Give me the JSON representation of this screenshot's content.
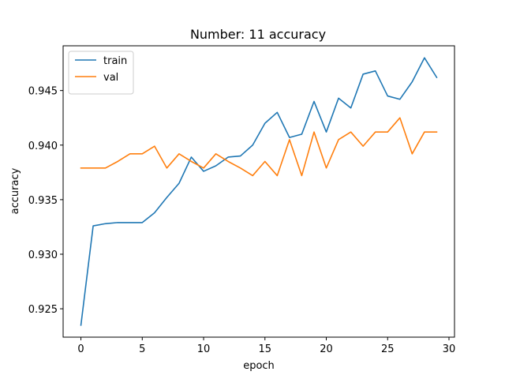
{
  "chart_data": {
    "type": "line",
    "title": "Number: 11 accuracy",
    "xlabel": "epoch",
    "ylabel": "accuracy",
    "xlim": [
      -1.45,
      30.45
    ],
    "ylim": [
      0.9224,
      0.9491
    ],
    "xticks": [
      0,
      5,
      10,
      15,
      20,
      25,
      30
    ],
    "yticks": [
      0.925,
      0.93,
      0.935,
      0.94,
      0.945
    ],
    "ytick_labels": [
      "0.925",
      "0.930",
      "0.935",
      "0.940",
      "0.945"
    ],
    "grid": false,
    "legend_position": "upper-left",
    "x": [
      0,
      1,
      2,
      3,
      4,
      5,
      6,
      7,
      8,
      9,
      10,
      11,
      12,
      13,
      14,
      15,
      16,
      17,
      18,
      19,
      20,
      21,
      22,
      23,
      24,
      25,
      26,
      27,
      28,
      29
    ],
    "series": [
      {
        "name": "train",
        "color": "#1f77b4",
        "values": [
          0.9235,
          0.9326,
          0.9328,
          0.9329,
          0.9329,
          0.9329,
          0.9338,
          0.9352,
          0.9365,
          0.9389,
          0.9376,
          0.9381,
          0.9389,
          0.939,
          0.94,
          0.942,
          0.943,
          0.9407,
          0.941,
          0.944,
          0.9412,
          0.9443,
          0.9434,
          0.9465,
          0.9468,
          0.9445,
          0.9442,
          0.9458,
          0.948,
          0.9462
        ]
      },
      {
        "name": "val",
        "color": "#ff7f0e",
        "values": [
          0.9379,
          0.9379,
          0.9379,
          0.9385,
          0.9392,
          0.9392,
          0.9399,
          0.9379,
          0.9392,
          0.9385,
          0.9379,
          0.9392,
          0.9385,
          0.9379,
          0.9372,
          0.9385,
          0.9372,
          0.9405,
          0.9372,
          0.9412,
          0.9379,
          0.9405,
          0.9412,
          0.9399,
          0.9412,
          0.9412,
          0.9425,
          0.9392,
          0.9412,
          0.9412
        ]
      }
    ]
  }
}
